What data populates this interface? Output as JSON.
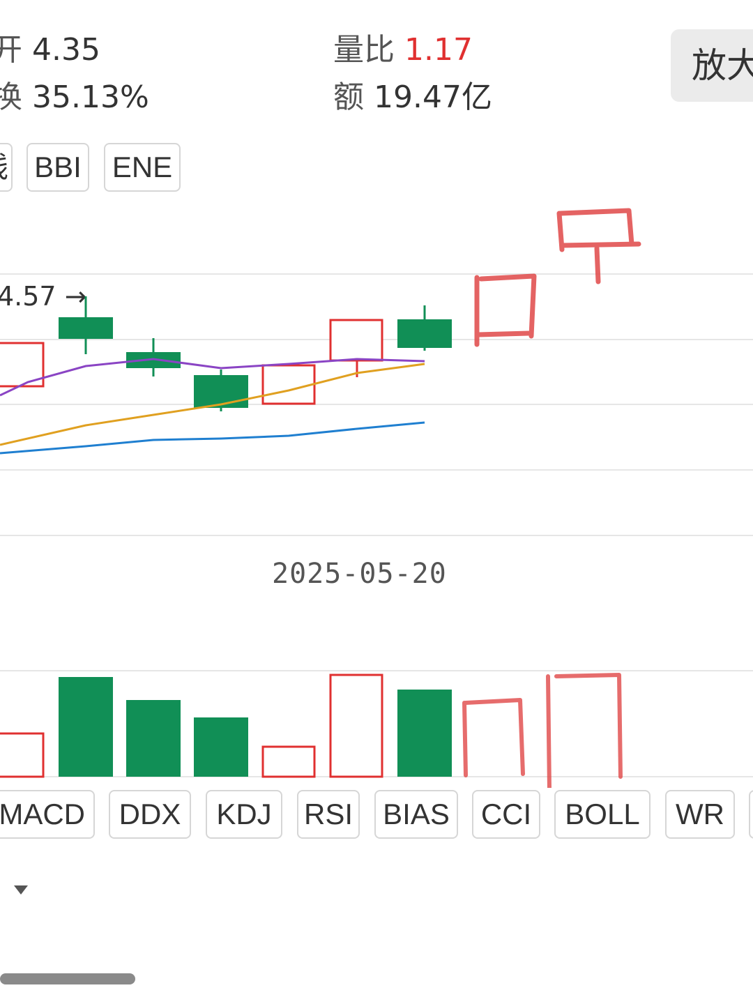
{
  "stats": {
    "open": {
      "label": "开",
      "value": "4.35"
    },
    "turnover": {
      "label": "换",
      "value": "35.13%"
    },
    "volume_ratio": {
      "label": "量比",
      "value": "1.17"
    },
    "amount": {
      "label": "额",
      "value": "19.47亿"
    }
  },
  "zoom_button": {
    "label": "放大"
  },
  "overlay_tabs": [
    "线",
    "BBI",
    "ENE"
  ],
  "high_marker": {
    "text": "4.57 →"
  },
  "date_label": "2025-05-20",
  "indicator_tabs": [
    "MACD",
    "DDX",
    "KDJ",
    "RSI",
    "BIAS",
    "CCI",
    "BOLL",
    "WR"
  ],
  "colors": {
    "up": "#e03030",
    "down": "#118f56",
    "ma_purple": "#8a44c4",
    "ma_gold": "#e0a020",
    "ma_blue": "#1f7fd0",
    "grid": "#e6e6e6",
    "sketch": "#e04848"
  },
  "chart_data": {
    "type": "candlestick",
    "candles": [
      {
        "dir": "up"
      },
      {
        "dir": "down"
      },
      {
        "dir": "down"
      },
      {
        "dir": "down"
      },
      {
        "dir": "up"
      },
      {
        "dir": "up"
      },
      {
        "dir": "down"
      }
    ],
    "ma_lines": [
      "purple",
      "gold",
      "blue"
    ],
    "volume_bars": [
      {
        "dir": "up"
      },
      {
        "dir": "down"
      },
      {
        "dir": "down"
      },
      {
        "dir": "down"
      },
      {
        "dir": "up"
      },
      {
        "dir": "up"
      },
      {
        "dir": "down"
      }
    ],
    "hand_drawn_annotations": [
      "sketched candle",
      "sketched candle",
      "sketched volume bar",
      "sketched volume bar"
    ]
  }
}
